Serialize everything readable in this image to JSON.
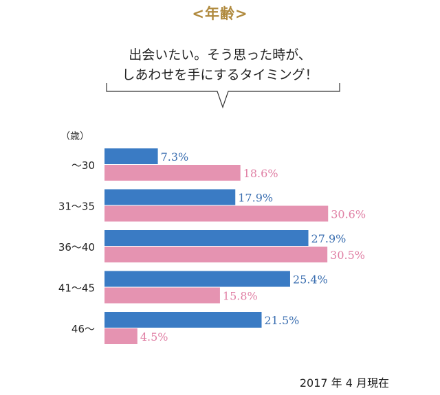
{
  "header": {
    "title": "<年齢>",
    "callout_line1": "出会いたい。そう思った時が、",
    "callout_line2": "しあわせを手にするタイミング！"
  },
  "colors": {
    "title": "#b08a3e",
    "series_blue": "#3a7bc4",
    "series_pink": "#e593b1",
    "blue_label": "#3a6eb0",
    "pink_label": "#e07fa4"
  },
  "footnote": "2017 年 4 月現在",
  "chart_data": {
    "type": "bar",
    "orientation": "horizontal",
    "unit_label": "（歳）",
    "categories": [
      "〜30",
      "31〜35",
      "36〜40",
      "41〜45",
      "46〜"
    ],
    "series": [
      {
        "values": [
          7.3,
          17.9,
          27.9,
          25.4,
          21.5
        ],
        "labels": [
          "7.3%",
          "17.9%",
          "27.9%",
          "25.4%",
          "21.5%"
        ]
      },
      {
        "values": [
          18.6,
          30.6,
          30.5,
          15.8,
          4.5
        ],
        "labels": [
          "18.6%",
          "30.6%",
          "30.5%",
          "15.8%",
          "4.5%"
        ]
      }
    ],
    "xlim": [
      0,
      35
    ],
    "grid": false,
    "legend": "none"
  }
}
